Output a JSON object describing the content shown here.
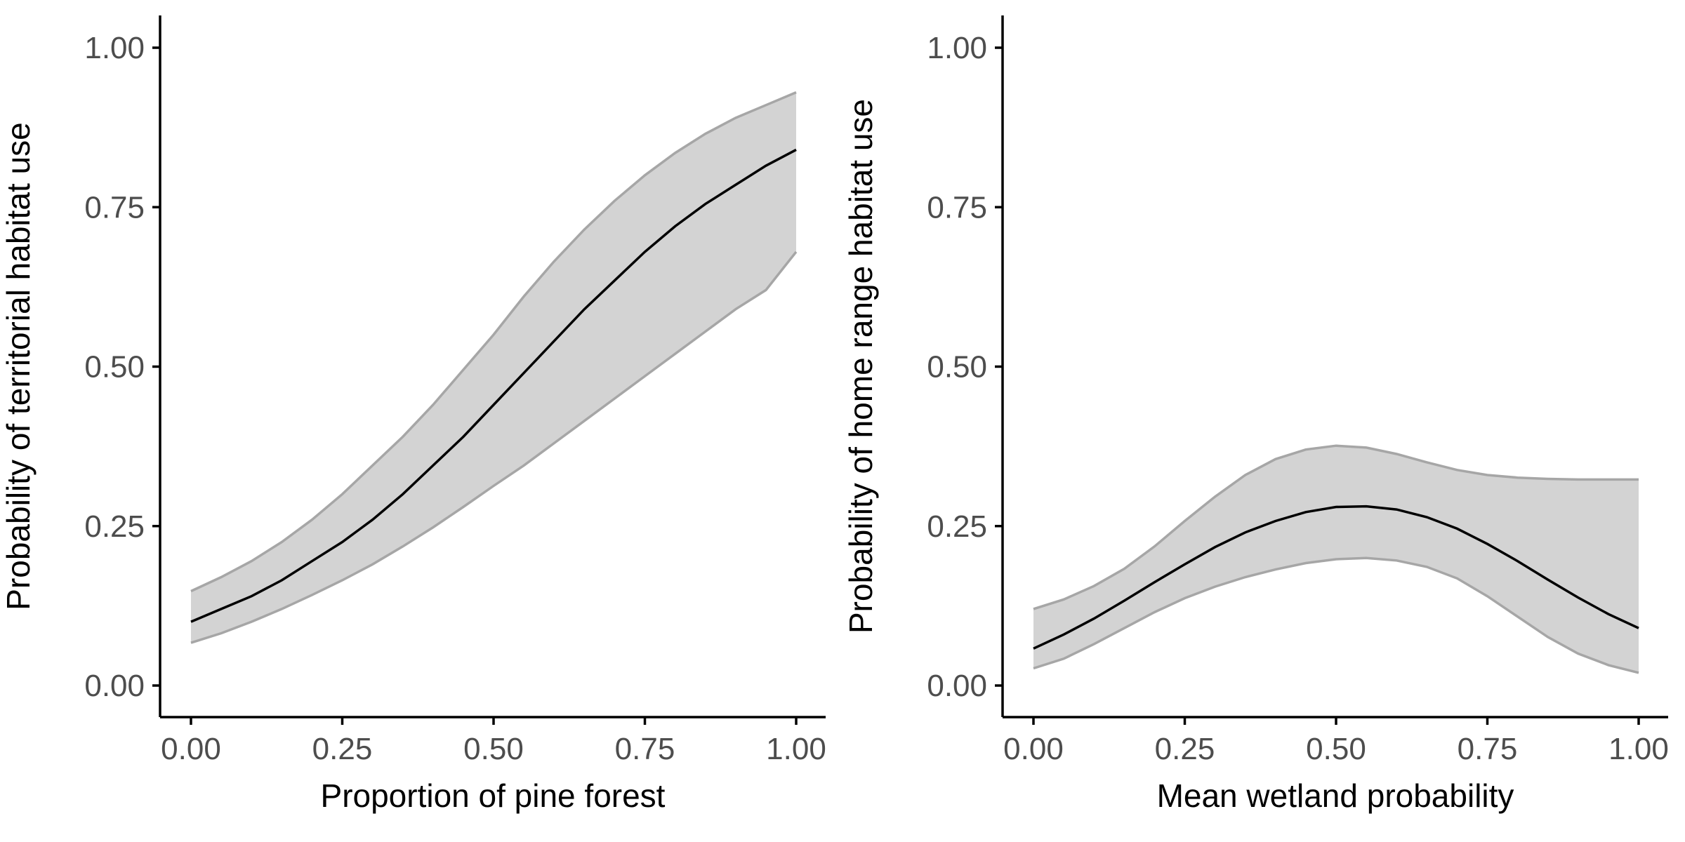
{
  "chart_data": [
    {
      "type": "line",
      "title": "",
      "xlabel": "Proportion of pine forest",
      "ylabel": "Probability of territorial habitat use",
      "xlim": [
        0,
        1
      ],
      "ylim": [
        0,
        1
      ],
      "x_ticks": [
        "0.00",
        "0.25",
        "0.50",
        "0.75",
        "1.00"
      ],
      "y_ticks": [
        "0.00",
        "0.25",
        "0.50",
        "0.75",
        "1.00"
      ],
      "grid": false,
      "legend": "none",
      "colors": {
        "line": "#000000",
        "band_fill": "#d3d3d3",
        "band_edge": "#a6a6a6"
      },
      "series": [
        {
          "x": [
            0,
            0.05,
            0.1,
            0.15,
            0.2,
            0.25,
            0.3,
            0.35,
            0.4,
            0.45,
            0.5,
            0.55,
            0.6,
            0.65,
            0.7,
            0.75,
            0.8,
            0.85,
            0.9,
            0.95,
            1.0
          ],
          "y": [
            0.1,
            0.12,
            0.14,
            0.165,
            0.195,
            0.225,
            0.26,
            0.3,
            0.345,
            0.39,
            0.44,
            0.49,
            0.54,
            0.59,
            0.635,
            0.68,
            0.72,
            0.755,
            0.785,
            0.815,
            0.84
          ],
          "lower": [
            0.067,
            0.082,
            0.1,
            0.12,
            0.142,
            0.165,
            0.19,
            0.218,
            0.248,
            0.28,
            0.313,
            0.345,
            0.38,
            0.415,
            0.45,
            0.485,
            0.52,
            0.555,
            0.59,
            0.62,
            0.68
          ],
          "upper": [
            0.148,
            0.17,
            0.195,
            0.225,
            0.26,
            0.3,
            0.345,
            0.39,
            0.44,
            0.495,
            0.55,
            0.61,
            0.665,
            0.715,
            0.76,
            0.8,
            0.835,
            0.865,
            0.89,
            0.91,
            0.93
          ]
        }
      ]
    },
    {
      "type": "line",
      "title": "",
      "xlabel": "Mean wetland probability",
      "ylabel": "Probability of home range habitat use",
      "xlim": [
        0,
        1
      ],
      "ylim": [
        0,
        1
      ],
      "x_ticks": [
        "0.00",
        "0.25",
        "0.50",
        "0.75",
        "1.00"
      ],
      "y_ticks": [
        "0.00",
        "0.25",
        "0.50",
        "0.75",
        "1.00"
      ],
      "grid": false,
      "legend": "none",
      "colors": {
        "line": "#000000",
        "band_fill": "#d3d3d3",
        "band_edge": "#a6a6a6"
      },
      "series": [
        {
          "x": [
            0,
            0.05,
            0.1,
            0.15,
            0.2,
            0.25,
            0.3,
            0.35,
            0.4,
            0.45,
            0.5,
            0.55,
            0.6,
            0.65,
            0.7,
            0.75,
            0.8,
            0.85,
            0.9,
            0.95,
            1.0
          ],
          "y": [
            0.058,
            0.08,
            0.105,
            0.133,
            0.162,
            0.19,
            0.217,
            0.24,
            0.258,
            0.272,
            0.28,
            0.281,
            0.276,
            0.264,
            0.246,
            0.222,
            0.195,
            0.166,
            0.138,
            0.112,
            0.09
          ],
          "lower": [
            0.027,
            0.042,
            0.065,
            0.09,
            0.115,
            0.137,
            0.155,
            0.17,
            0.182,
            0.192,
            0.198,
            0.2,
            0.196,
            0.186,
            0.168,
            0.14,
            0.108,
            0.076,
            0.05,
            0.032,
            0.02
          ],
          "upper": [
            0.12,
            0.135,
            0.156,
            0.183,
            0.218,
            0.258,
            0.296,
            0.33,
            0.355,
            0.37,
            0.376,
            0.373,
            0.363,
            0.35,
            0.338,
            0.33,
            0.326,
            0.324,
            0.323,
            0.323,
            0.323
          ]
        }
      ]
    }
  ]
}
